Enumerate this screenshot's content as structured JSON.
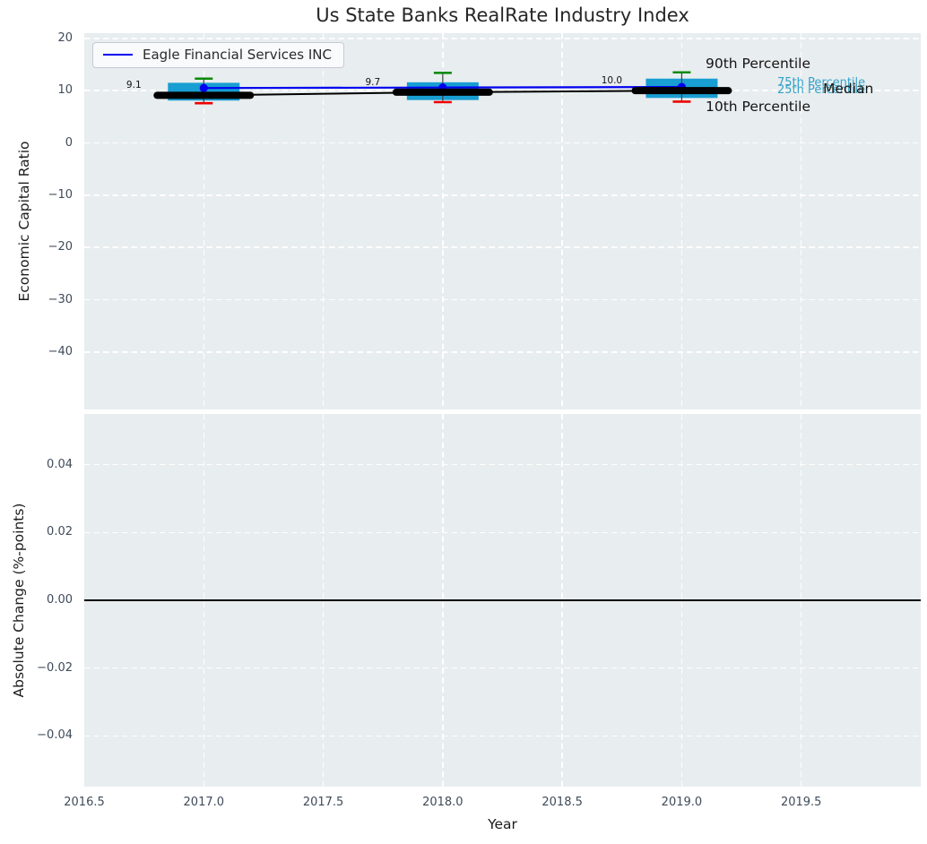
{
  "title": "Us State Banks RealRate Industry Index",
  "legend": {
    "label": "Eagle Financial Services INC"
  },
  "top_chart": {
    "ylabel": "Economic Capital Ratio",
    "ytick_labels": [
      "20",
      "10",
      "0",
      "−10",
      "−20",
      "−30",
      "−40"
    ],
    "annotations": {
      "p90": "90th Percentile",
      "p75": "75th Percentile",
      "p25": "25th Percentile",
      "median": "Median",
      "p10": "10th Percentile"
    }
  },
  "bottom_chart": {
    "ylabel": "Absolute Change (%-points)",
    "ytick_labels": [
      "0.04",
      "0.02",
      "0.00",
      "−0.02",
      "−0.04"
    ]
  },
  "x_axis": {
    "label": "Year",
    "tick_labels": [
      "2016.5",
      "2017.0",
      "2017.5",
      "2018.0",
      "2018.5",
      "2019.0",
      "2019.5"
    ]
  },
  "chart_data": {
    "type": "box+line",
    "title": "Us State Banks RealRate Industry Index",
    "xlabel": "Year",
    "xlim": [
      2016.5,
      2020.0
    ],
    "xticks": [
      2016.5,
      2017.0,
      2017.5,
      2018.0,
      2018.5,
      2019.0,
      2019.5
    ],
    "grid": true,
    "legend_position": "upper left",
    "top_panel": {
      "ylabel": "Economic Capital Ratio",
      "ylim": [
        -51,
        21
      ],
      "yticks": [
        20,
        10,
        0,
        -10,
        -20,
        -30,
        -40
      ],
      "boxes": [
        {
          "year": 2017,
          "p10": 7.6,
          "p25": 8.1,
          "median": 9.1,
          "p75": 11.5,
          "p90": 12.3,
          "median_label": "9.1"
        },
        {
          "year": 2018,
          "p10": 7.8,
          "p25": 8.2,
          "median": 9.7,
          "p75": 11.6,
          "p90": 13.4,
          "median_label": "9.7"
        },
        {
          "year": 2019,
          "p10": 7.9,
          "p25": 8.6,
          "median": 10.0,
          "p75": 12.3,
          "p90": 13.5,
          "median_label": "10.0"
        }
      ],
      "line_series": {
        "name": "Eagle Financial Services INC",
        "x": [
          2017,
          2018,
          2019
        ],
        "values": [
          10.5,
          10.6,
          10.7
        ]
      },
      "median_series": {
        "x": [
          2017,
          2018,
          2019
        ],
        "values": [
          9.1,
          9.7,
          10.0
        ]
      }
    },
    "bottom_panel": {
      "ylabel": "Absolute Change (%-points)",
      "ylim": [
        -0.055,
        0.055
      ],
      "yticks": [
        0.04,
        0.02,
        0.0,
        -0.02,
        -0.04
      ],
      "x": [
        2017,
        2018,
        2019
      ],
      "values": [
        0,
        0,
        0
      ],
      "values_note": "no visible bars; only zero baseline shown"
    },
    "colors": {
      "box_fill": "#189ed2",
      "company_line": "#0000f0",
      "median_line": "#000000",
      "p90_cap": "#0a8a0a",
      "p10_cap": "#ee0000",
      "whisker": "#3f3f3f",
      "percentile_text_cyan": "#35a2c9",
      "plot_bg": "#e8edef",
      "zero_line": "#000000"
    }
  }
}
